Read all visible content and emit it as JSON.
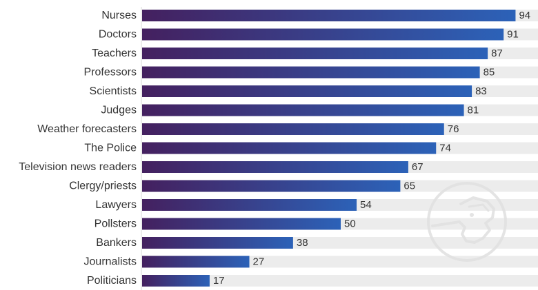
{
  "chart_data": {
    "type": "bar",
    "orientation": "horizontal",
    "categories": [
      "Nurses",
      "Doctors",
      "Teachers",
      "Professors",
      "Scientists",
      "Judges",
      "Weather forecasters",
      "The Police",
      "Television news readers",
      "Clergy/priests",
      "Lawyers",
      "Pollsters",
      "Bankers",
      "Journalists",
      "Politicians"
    ],
    "values": [
      94,
      91,
      87,
      85,
      83,
      81,
      76,
      74,
      67,
      65,
      54,
      50,
      38,
      27,
      17
    ],
    "xlim": [
      0,
      100
    ],
    "title": "",
    "xlabel": "",
    "ylabel": "",
    "grid": false,
    "legend": "none"
  },
  "colors": {
    "bar_start": "#44205f",
    "bar_end": "#2c62b8",
    "track": "#ececec",
    "text": "#333333",
    "watermark": "#e2e2e2"
  },
  "watermark": {
    "icon": "pinocchio-icon"
  }
}
